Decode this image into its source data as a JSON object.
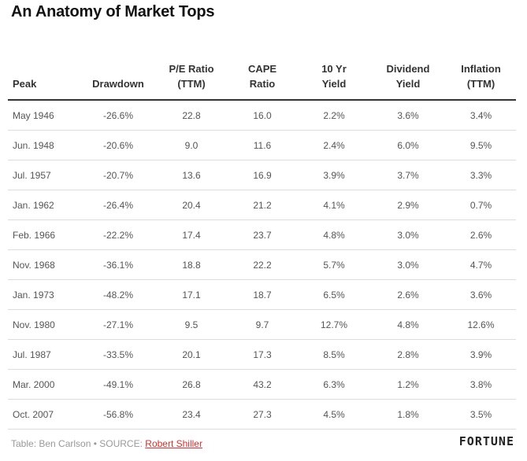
{
  "title": "An Anatomy of Market Tops",
  "columns": [
    {
      "line1": "Peak",
      "line2": ""
    },
    {
      "line1": "Drawdown",
      "line2": ""
    },
    {
      "line1": "P/E Ratio",
      "line2": "(TTM)"
    },
    {
      "line1": "CAPE",
      "line2": "Ratio"
    },
    {
      "line1": "10 Yr",
      "line2": "Yield"
    },
    {
      "line1": "Dividend",
      "line2": "Yield"
    },
    {
      "line1": "Inflation",
      "line2": "(TTM)"
    }
  ],
  "rows": [
    [
      "May 1946",
      "-26.6%",
      "22.8",
      "16.0",
      "2.2%",
      "3.6%",
      "3.4%"
    ],
    [
      "Jun. 1948",
      "-20.6%",
      "9.0",
      "11.6",
      "2.4%",
      "6.0%",
      "9.5%"
    ],
    [
      "Jul. 1957",
      "-20.7%",
      "13.6",
      "16.9",
      "3.9%",
      "3.7%",
      "3.3%"
    ],
    [
      "Jan. 1962",
      "-26.4%",
      "20.4",
      "21.2",
      "4.1%",
      "2.9%",
      "0.7%"
    ],
    [
      "Feb. 1966",
      "-22.2%",
      "17.4",
      "23.7",
      "4.8%",
      "3.0%",
      "2.6%"
    ],
    [
      "Nov. 1968",
      "-36.1%",
      "18.8",
      "22.2",
      "5.7%",
      "3.0%",
      "4.7%"
    ],
    [
      "Jan. 1973",
      "-48.2%",
      "17.1",
      "18.7",
      "6.5%",
      "2.6%",
      "3.6%"
    ],
    [
      "Nov. 1980",
      "-27.1%",
      "9.5",
      "9.7",
      "12.7%",
      "4.8%",
      "12.6%"
    ],
    [
      "Jul. 1987",
      "-33.5%",
      "20.1",
      "17.3",
      "8.5%",
      "2.8%",
      "3.9%"
    ],
    [
      "Mar. 2000",
      "-49.1%",
      "26.8",
      "43.2",
      "6.3%",
      "1.2%",
      "3.8%"
    ],
    [
      "Oct. 2007",
      "-56.8%",
      "23.4",
      "27.3",
      "4.5%",
      "1.8%",
      "3.5%"
    ]
  ],
  "footer": {
    "prefix": "Table: Ben Carlson • SOURCE: ",
    "source_link": "Robert Shiller"
  },
  "logo": "FORTUNE"
}
